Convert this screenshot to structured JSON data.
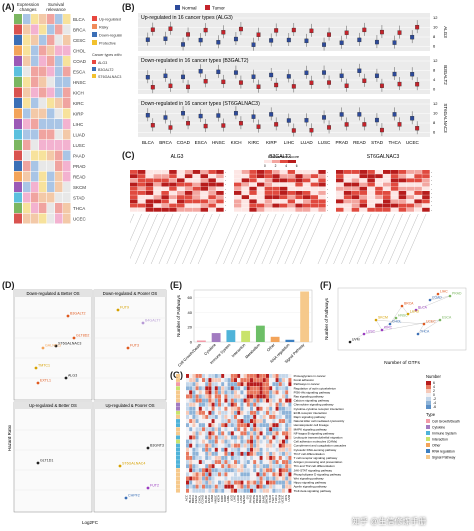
{
  "panels": {
    "a": "(A)",
    "b": "(B)",
    "c": "(C)",
    "d": "(D)",
    "e": "(E)",
    "f": "(F)",
    "g": "(G)"
  },
  "panel_a": {
    "headers": [
      "Expression changes",
      "Survival relevance"
    ],
    "legend_risky": [
      "Up-regulated",
      "Risky",
      "Down-regulated",
      "Protective"
    ],
    "legend_colors": {
      "up": "#e8473e",
      "risky": "#f08b5a",
      "down": "#3b6fb6",
      "protective": "#f2c12e"
    },
    "gene_legend_title": "Cancer types with marked examples",
    "columns": [
      "ALG3",
      "B3GALT2",
      "ST6GALNAC3"
    ],
    "rows": [
      "BLCA",
      "BRCA",
      "CESC",
      "CHOL",
      "COAD",
      "ESCA",
      "HNSC",
      "KICH",
      "KIRC",
      "KIRP",
      "LIHC",
      "LUAD",
      "LUSC",
      "PAAD",
      "PRAD",
      "READ",
      "SKCM",
      "STAD",
      "THCA",
      "UCEC"
    ]
  },
  "chart_data": [
    {
      "id": "B",
      "type": "box",
      "title_rows": [
        "Up-regulated in 16 cancer types (ALG3)",
        "Down-regulated in 16 cancer types (B3GALT2)",
        "Down-regulated in 16 cancer types (ST6GALNAC3)"
      ],
      "row_genes": [
        "ALG3",
        "B3GALT2",
        "ST6GALNAC3"
      ],
      "legend": [
        "Normal",
        "Tumor"
      ],
      "colors": {
        "normal": "#2d4a9a",
        "tumor": "#c4232b"
      },
      "categories": [
        "BLCA",
        "BRCA",
        "COAD",
        "ESCA",
        "HNSC",
        "KICH",
        "KIRC",
        "KIRP",
        "LIHC",
        "LUAD",
        "LUSC",
        "PRAD",
        "READ",
        "STAD",
        "THCA",
        "UCEC"
      ],
      "ticks": {
        "ALG3": [
          "12",
          "10",
          "8",
          "6"
        ],
        "B3GALT2": [
          "12",
          "8",
          "4",
          "0"
        ],
        "ST6GALNAC3": [
          "12",
          "10",
          "8",
          "6"
        ]
      }
    },
    {
      "id": "C",
      "type": "heatmap",
      "groups": [
        "ALG3",
        "B3GALT2",
        "ST6GALNAC3"
      ],
      "legend_title": "Enrichment score",
      "legend_ticks": [
        "0",
        "2",
        "4",
        "6"
      ]
    },
    {
      "id": "D",
      "type": "scatter",
      "quadrants": [
        "Down-regulated & Better OS",
        "Down-regulated & Poorer OS",
        "Up-regulated & Better OS",
        "Up-regulated & Poorer OS"
      ],
      "xlabel": "Log2FC",
      "ylabel": "Hazard Ratio",
      "genes": [
        "B3GALT2",
        "ST6GALNAC3",
        "GALNT13",
        "TMTC1",
        "EXTL1",
        "ALG3",
        "GLT8D2",
        "FUT9",
        "B4GALT7",
        "FUT3",
        "GLT1D1",
        "B3GNT3",
        "ST6GALNAC4",
        "FUT2",
        "CHPF2"
      ]
    },
    {
      "id": "E",
      "type": "bar",
      "ylabel": "Number of Pathways",
      "categories": [
        "Cell Growth/Death",
        "Cytokine",
        "Immune System",
        "Interaction",
        "Metabolism",
        "Other",
        "RNA regulation",
        "Signal Pathway"
      ],
      "values": [
        2,
        12,
        16,
        15,
        22,
        7,
        3,
        68
      ],
      "colors": [
        "#f29ba8",
        "#a27bc1",
        "#4fb3d9",
        "#c9e36b",
        "#6dbf67",
        "#f3a45a",
        "#3c7fc1",
        "#f6c98b"
      ],
      "ytick_values": [
        0,
        20,
        40,
        60
      ],
      "ylim": [
        0,
        70
      ]
    },
    {
      "id": "F",
      "type": "scatter",
      "xlabel": "Number of GTFs",
      "ylabel": "Number of Pathways",
      "labels": [
        "LIHC",
        "COAD",
        "PRAD",
        "BLCA",
        "LUAD",
        "BRCA",
        "CHOL",
        "HNSC",
        "KIRC",
        "SKCM",
        "UCEC",
        "THCA",
        "ESCA",
        "LUSC",
        "UVM"
      ]
    },
    {
      "id": "G",
      "type": "heatmap",
      "legend_title": "Number",
      "legend_values": [
        "6",
        "4",
        "2",
        "0",
        "-2",
        "-4",
        "-6"
      ],
      "type_legend_title": "Type",
      "type_legend": [
        "Cell Growth/Death",
        "Cytokine",
        "Immune System",
        "Interaction",
        "Other",
        "RNA regulation",
        "Signal Pathway"
      ],
      "type_colors": [
        "#f29ba8",
        "#a27bc1",
        "#4fb3d9",
        "#c9e36b",
        "#f3a45a",
        "#3c7fc1",
        "#f6c98b"
      ],
      "rows": [
        "Proteoglycans in cancer",
        "Focal adhesion",
        "Pathways in cancer",
        "Regulation of actin cytoskeleton",
        "PI3K-Akt signaling pathway",
        "Ras signaling pathway",
        "Calcium signaling pathway",
        "Chemokine signaling pathway",
        "Cytokine-cytokine receptor interaction",
        "ECM-receptor interaction",
        "Rap1 signaling pathway",
        "Natural killer cell mediated cytotoxicity",
        "Hematopoietic cell lineage",
        "MAPK signaling pathway",
        "NF-kappa B signaling pathway",
        "Leukocyte transendothelial migration",
        "Cell adhesion molecules (CAMs)",
        "Complement and coagulation cascades",
        "Cytosolic DNA-sensing pathway",
        "Th17 cell differentiation",
        "T cell receptor signaling pathway",
        "Antigen processing and presentation",
        "Th1 and Th2 cell differentiation",
        "JAK-STAT signaling pathway",
        "Phospholipase D signaling pathway",
        "Wnt signaling pathway",
        "Hippo signaling pathway",
        "Apelin signaling pathway",
        "TGF-beta signaling pathway"
      ],
      "columns": [
        "ACC",
        "BLCA",
        "BRCA",
        "CESC",
        "CHOL",
        "COAD",
        "DLBC",
        "ESCA",
        "GBM",
        "HNSC",
        "KICH",
        "KIRC",
        "KIRP",
        "LAML",
        "LGG",
        "LIHC",
        "LUAD",
        "LUSC",
        "MESO",
        "OV",
        "PAAD",
        "PCPG",
        "PRAD",
        "READ",
        "SARC",
        "SKCM",
        "STAD",
        "TGCT",
        "THCA",
        "THYM",
        "UCEC",
        "UCS",
        "UVM"
      ]
    }
  ],
  "watermark": "知乎 @生信修炼手册"
}
